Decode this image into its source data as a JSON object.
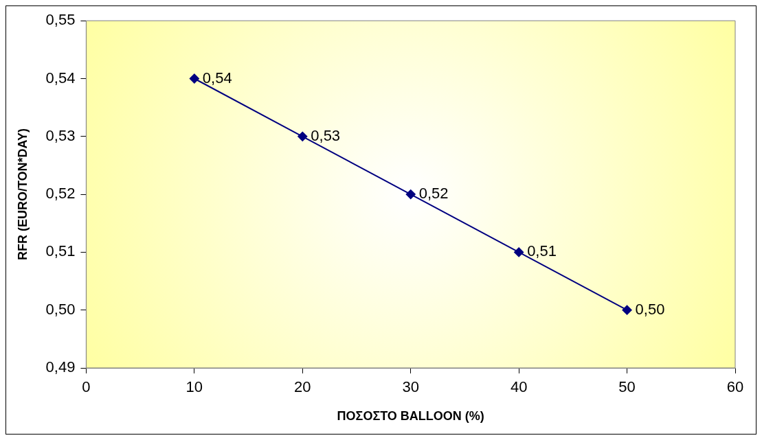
{
  "chart_data": {
    "type": "line",
    "xlabel": "ΠΟΣΟΣΤΟ BALLOON (%)",
    "ylabel": "RFR (EURO/TON*DAY)",
    "x": [
      10,
      20,
      30,
      40,
      50
    ],
    "series": [
      {
        "color": "#000080",
        "values": [
          0.54,
          0.53,
          0.52,
          0.51,
          0.5
        ],
        "value_labels": [
          "0,54",
          "0,53",
          "0,52",
          "0,51",
          "0,50"
        ]
      }
    ],
    "xlim": [
      0,
      60
    ],
    "xticks": [
      0,
      10,
      20,
      30,
      40,
      50,
      60
    ],
    "ylim": [
      0.49,
      0.55
    ],
    "yticks": [
      {
        "value": 0.49,
        "label": "0,49"
      },
      {
        "value": 0.5,
        "label": "0,50"
      },
      {
        "value": 0.51,
        "label": "0,51"
      },
      {
        "value": 0.52,
        "label": "0,52"
      },
      {
        "value": 0.53,
        "label": "0,53"
      },
      {
        "value": 0.54,
        "label": "0,54"
      },
      {
        "value": 0.55,
        "label": "0,55"
      }
    ],
    "grid": false,
    "legend": false,
    "marker": "diamond",
    "line_style": "solid"
  }
}
